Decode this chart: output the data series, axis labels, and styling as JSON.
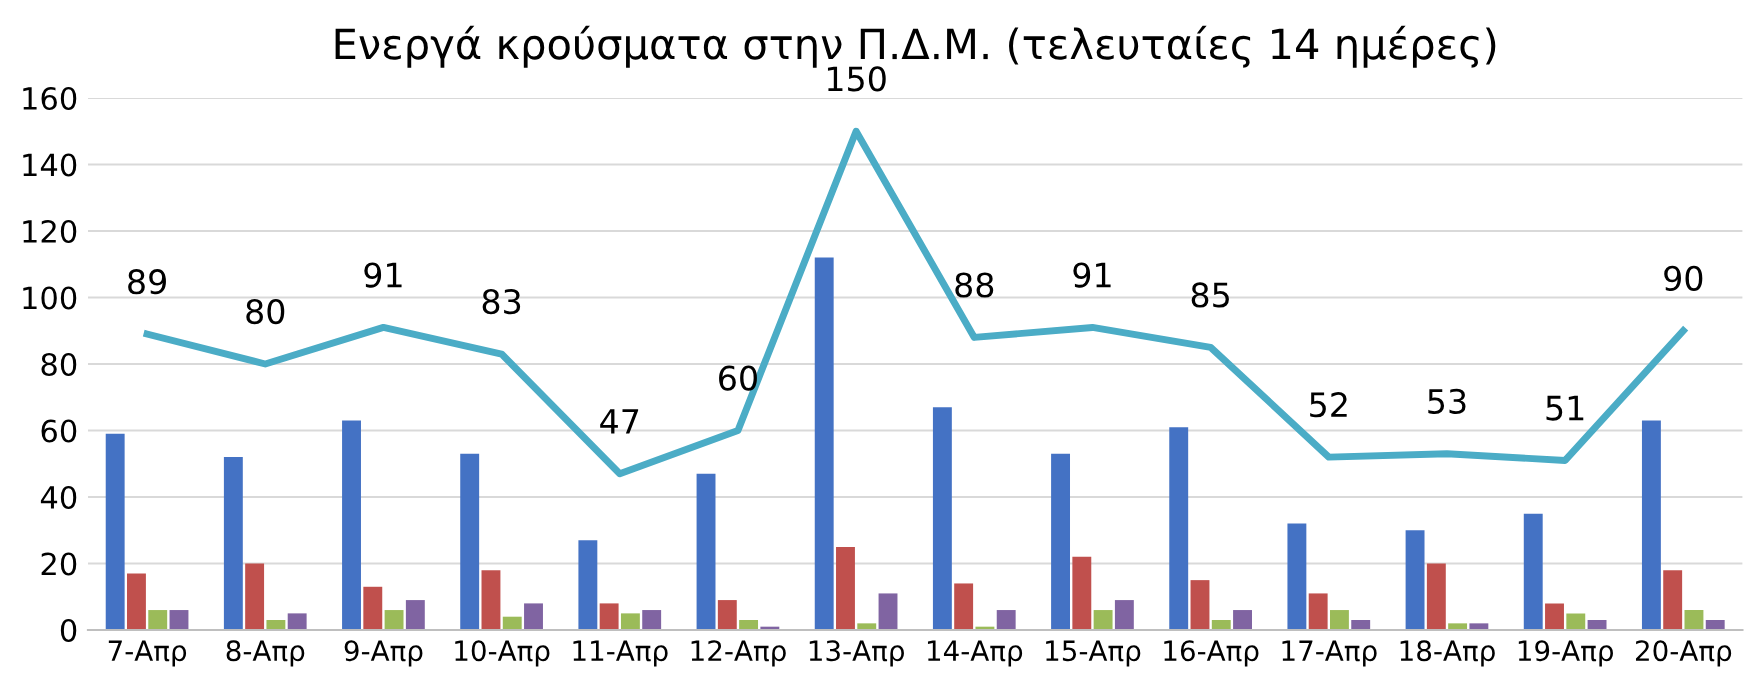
{
  "chart_data": {
    "type": "bar",
    "title": "Ενεργά κρούσματα στην Π.Δ.Μ. (τελευταίες 14 ημέρες)",
    "categories": [
      "7-Απρ",
      "8-Απρ",
      "9-Απρ",
      "10-Απρ",
      "11-Απρ",
      "12-Απρ",
      "13-Απρ",
      "14-Απρ",
      "15-Απρ",
      "16-Απρ",
      "17-Απρ",
      "18-Απρ",
      "19-Απρ",
      "20-Απρ"
    ],
    "series": [
      {
        "color": "#4472c4",
        "values": [
          59,
          52,
          63,
          53,
          27,
          47,
          112,
          67,
          53,
          61,
          32,
          30,
          35,
          63
        ]
      },
      {
        "color": "#c0504d",
        "values": [
          17,
          20,
          13,
          18,
          8,
          9,
          25,
          14,
          22,
          15,
          11,
          20,
          8,
          18
        ]
      },
      {
        "color": "#9bbb59",
        "values": [
          6,
          3,
          6,
          4,
          5,
          3,
          2,
          1,
          6,
          3,
          6,
          2,
          5,
          6
        ]
      },
      {
        "color": "#8064a2",
        "values": [
          6,
          5,
          9,
          8,
          6,
          1,
          11,
          6,
          9,
          6,
          3,
          2,
          3,
          3
        ]
      },
      {
        "type": "line",
        "color": "#4bacc6",
        "values": [
          89,
          80,
          91,
          83,
          47,
          60,
          150,
          88,
          91,
          85,
          52,
          53,
          51,
          90
        ],
        "data_labels": true
      }
    ],
    "ylim": [
      0,
      160
    ],
    "yticks": [
      0,
      20,
      40,
      60,
      80,
      100,
      120,
      140,
      160
    ],
    "grid": "y",
    "legend": false
  }
}
